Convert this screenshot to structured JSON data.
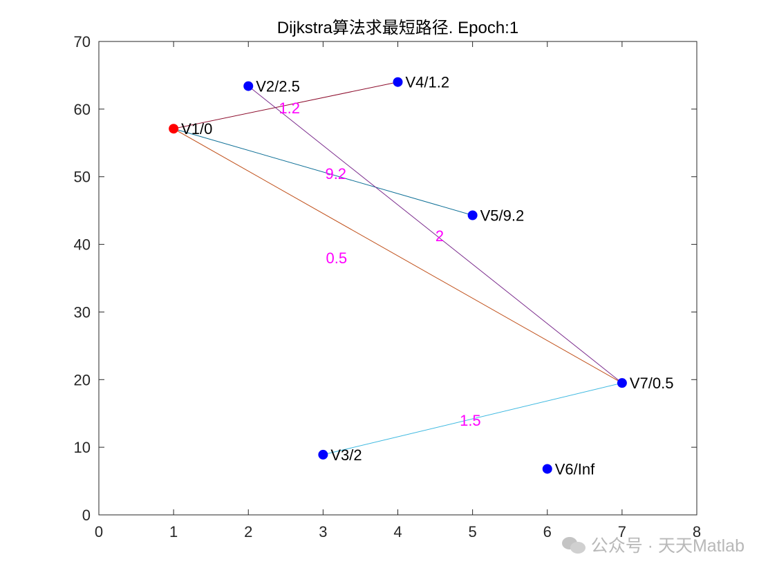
{
  "chart_data": {
    "type": "scatter",
    "title": "Dijkstra算法求最短路径. Epoch:1",
    "xlim": [
      0,
      8
    ],
    "ylim": [
      0,
      70
    ],
    "xticks": [
      0,
      1,
      2,
      3,
      4,
      5,
      6,
      7,
      8
    ],
    "yticks": [
      0,
      10,
      20,
      30,
      40,
      50,
      60,
      70
    ],
    "nodes": [
      {
        "id": "V1",
        "label": "V1/0",
        "x": 1,
        "y": 57.1,
        "color": "#ff0000"
      },
      {
        "id": "V2",
        "label": "V2/2.5",
        "x": 2,
        "y": 63.4,
        "color": "#0000ff"
      },
      {
        "id": "V3",
        "label": "V3/2",
        "x": 3,
        "y": 8.9,
        "color": "#0000ff"
      },
      {
        "id": "V4",
        "label": "V4/1.2",
        "x": 4,
        "y": 64.0,
        "color": "#0000ff"
      },
      {
        "id": "V5",
        "label": "V5/9.2",
        "x": 5,
        "y": 44.3,
        "color": "#0000ff"
      },
      {
        "id": "V6",
        "label": "V6/Inf",
        "x": 6,
        "y": 6.8,
        "color": "#0000ff"
      },
      {
        "id": "V7",
        "label": "V7/0.5",
        "x": 7,
        "y": 19.5,
        "color": "#0000ff"
      }
    ],
    "edges": [
      {
        "from": "V1",
        "to": "V4",
        "weight": "1.2",
        "color": "#8b0a2a",
        "label_x": 2.55,
        "label_y": 60.2
      },
      {
        "from": "V1",
        "to": "V5",
        "weight": "9.2",
        "color": "#0d6f96",
        "label_x": 3.17,
        "label_y": 50.5
      },
      {
        "from": "V1",
        "to": "V7",
        "weight": "0.5",
        "color": "#c0501a",
        "label_x": 3.18,
        "label_y": 38.0
      },
      {
        "from": "V2",
        "to": "V7",
        "weight": "2",
        "color": "#7a2a8c",
        "label_x": 4.56,
        "label_y": 41.3
      },
      {
        "from": "V3",
        "to": "V7",
        "weight": "1.5",
        "color": "#3cb8e0",
        "label_x": 4.97,
        "label_y": 14.0
      }
    ],
    "edge_label_color": "#ff00ff"
  },
  "watermark": {
    "icon": "wechat-icon",
    "text": "公众号 · 天天Matlab"
  }
}
